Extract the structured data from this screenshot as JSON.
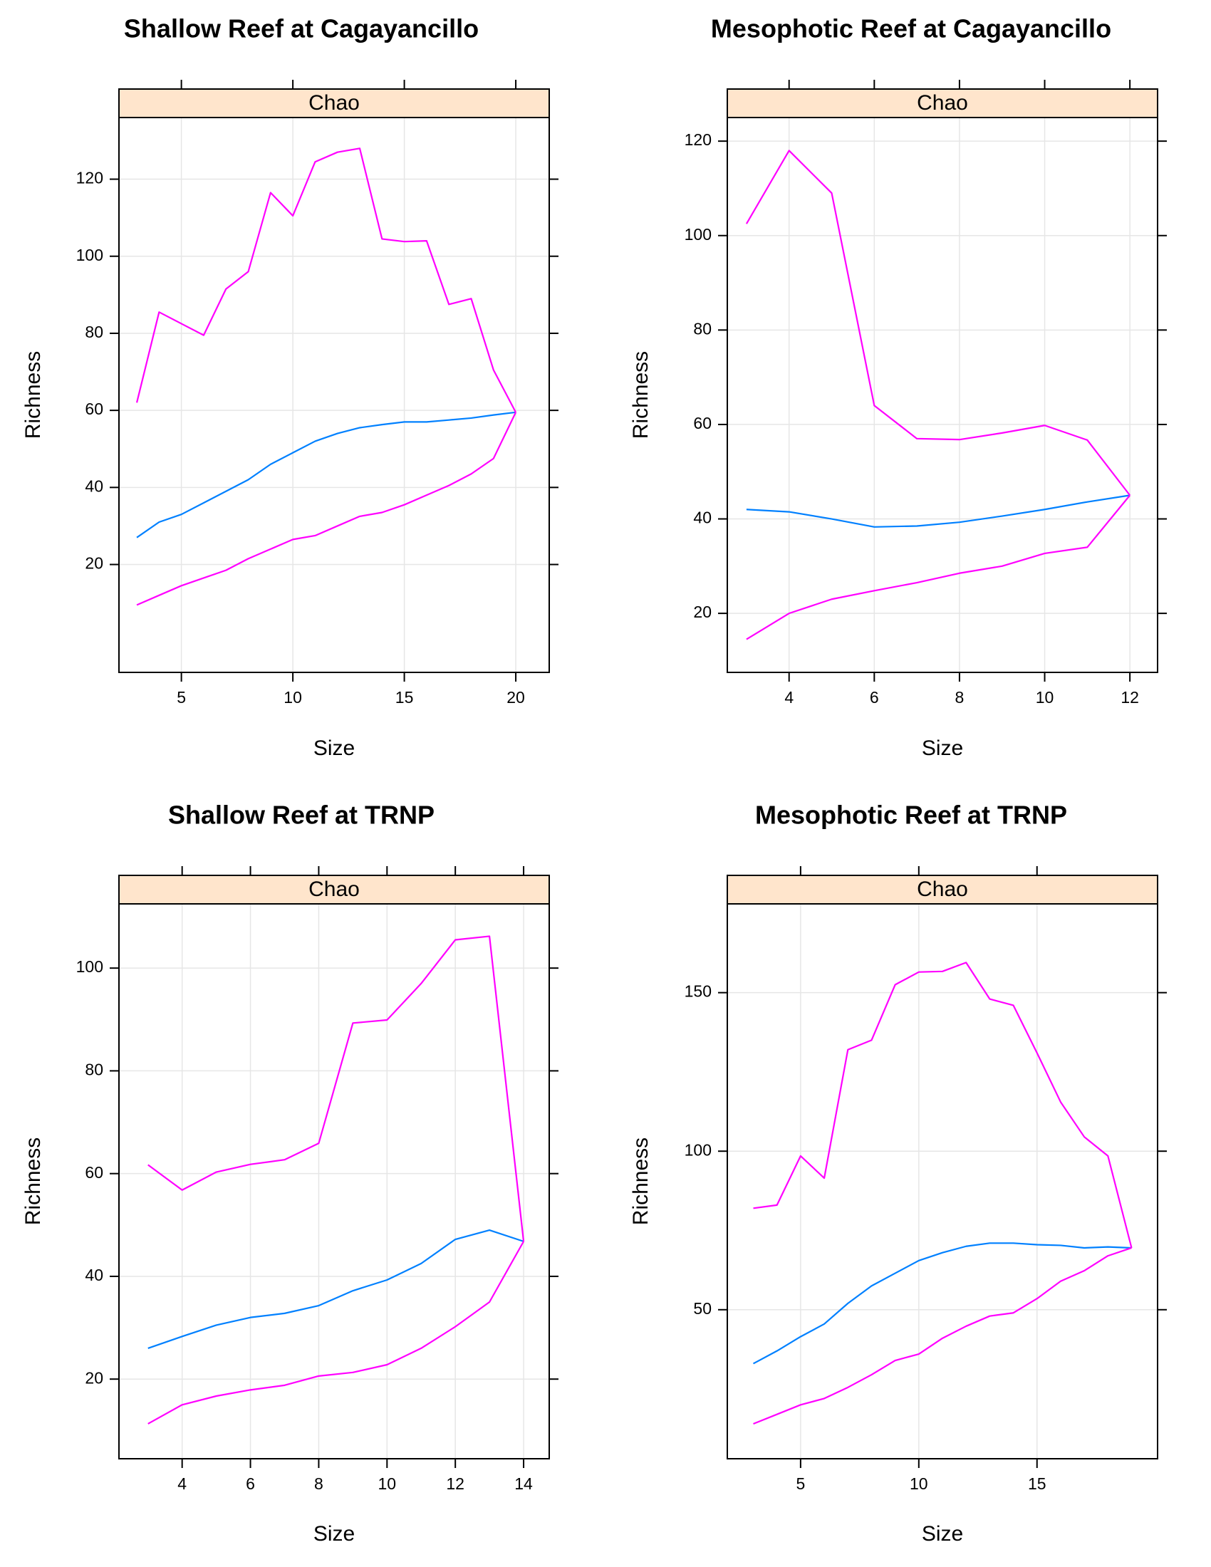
{
  "chart_data": [
    {
      "type": "line",
      "title": "Shallow Reef at Cagayancillo",
      "strip": "Chao",
      "xlabel": "Size",
      "ylabel": "Richness",
      "xlim": [
        2.2,
        21.5
      ],
      "ylim": [
        -8,
        136
      ],
      "xticks": [
        5,
        10,
        15,
        20
      ],
      "yticks": [
        20,
        40,
        60,
        80,
        100,
        120
      ],
      "grid": true,
      "colors": {
        "estimate": "#0080ff",
        "bounds": "#ff00ff",
        "strip": "#ffe5cc"
      },
      "x": [
        3,
        4,
        5,
        6,
        7,
        8,
        9,
        10,
        11,
        12,
        13,
        14,
        15,
        16,
        17,
        18,
        19,
        20
      ],
      "series": [
        {
          "values": [
            27,
            31,
            33,
            36,
            39,
            42,
            46,
            49,
            52,
            54,
            55.5,
            56.3,
            57,
            57,
            57.5,
            58,
            58.8,
            59.5
          ]
        },
        {
          "values": [
            62,
            85.5,
            82.5,
            79.5,
            91.5,
            96,
            116.5,
            110.5,
            124.5,
            127,
            128,
            104.5,
            103.8,
            104,
            87.5,
            89,
            70.5,
            59.5
          ]
        },
        {
          "values": [
            9.5,
            12,
            14.5,
            16.5,
            18.5,
            21.5,
            24,
            26.5,
            27.5,
            30,
            32.5,
            33.5,
            35.5,
            38,
            40.5,
            43.5,
            47.5,
            59.5
          ]
        }
      ]
    },
    {
      "type": "line",
      "title": "Mesophotic Reef at Cagayancillo",
      "strip": "Chao",
      "xlabel": "Size",
      "ylabel": "Richness",
      "xlim": [
        2.55,
        12.65
      ],
      "ylim": [
        7.5,
        125
      ],
      "xticks": [
        4,
        6,
        8,
        10,
        12
      ],
      "yticks": [
        20,
        40,
        60,
        80,
        100,
        120
      ],
      "grid": true,
      "colors": {
        "estimate": "#0080ff",
        "bounds": "#ff00ff",
        "strip": "#ffe5cc"
      },
      "x": [
        3,
        4,
        5,
        6,
        7,
        8,
        9,
        10,
        11,
        12
      ],
      "series": [
        {
          "values": [
            42,
            41.5,
            40,
            38.3,
            38.5,
            39.3,
            40.6,
            42,
            43.6,
            45
          ]
        },
        {
          "values": [
            102.5,
            118,
            109,
            64,
            57,
            56.8,
            58.2,
            59.8,
            56.7,
            45
          ]
        },
        {
          "values": [
            14.5,
            20,
            23,
            24.8,
            26.5,
            28.5,
            30,
            32.7,
            34,
            45
          ]
        }
      ]
    },
    {
      "type": "line",
      "title": "Shallow Reef at TRNP",
      "strip": "Chao",
      "xlabel": "Size",
      "ylabel": "Richness",
      "xlim": [
        2.15,
        14.75
      ],
      "ylim": [
        4.5,
        112.5
      ],
      "xticks": [
        4,
        6,
        8,
        10,
        12,
        14
      ],
      "yticks": [
        20,
        40,
        60,
        80,
        100
      ],
      "grid": true,
      "colors": {
        "estimate": "#0080ff",
        "bounds": "#ff00ff",
        "strip": "#ffe5cc"
      },
      "x": [
        3,
        4,
        5,
        6,
        7,
        8,
        9,
        10,
        11,
        12,
        13,
        14
      ],
      "series": [
        {
          "values": [
            26,
            28.3,
            30.5,
            32,
            32.8,
            34.3,
            37.2,
            39.3,
            42.5,
            47.2,
            49,
            46.8
          ]
        },
        {
          "values": [
            61.7,
            56.8,
            60.3,
            61.8,
            62.7,
            65.9,
            89.3,
            89.9,
            97,
            105.5,
            106.2,
            46.8
          ]
        },
        {
          "values": [
            11.3,
            15,
            16.7,
            17.9,
            18.8,
            20.6,
            21.3,
            22.8,
            26,
            30.2,
            35,
            46.8
          ]
        }
      ]
    },
    {
      "type": "line",
      "title": "Mesophotic Reef at TRNP",
      "strip": "Chao",
      "xlabel": "Size",
      "ylabel": "Richness",
      "xlim": [
        1.9,
        20.1
      ],
      "ylim": [
        3,
        178
      ],
      "xticks": [
        5,
        10,
        15
      ],
      "yticks": [
        50,
        100,
        150
      ],
      "grid": true,
      "colors": {
        "estimate": "#0080ff",
        "bounds": "#ff00ff",
        "strip": "#ffe5cc"
      },
      "x": [
        3,
        4,
        5,
        6,
        7,
        8,
        9,
        10,
        11,
        12,
        13,
        14,
        15,
        16,
        17,
        18,
        19
      ],
      "series": [
        {
          "values": [
            33,
            37,
            41.5,
            45.5,
            52,
            57.5,
            61.5,
            65.5,
            68,
            70,
            71,
            71,
            70.5,
            70.3,
            69.5,
            69.8,
            69.5
          ]
        },
        {
          "values": [
            82,
            83,
            98.5,
            91.5,
            132,
            135,
            152.5,
            156.5,
            156.7,
            159.5,
            148,
            146,
            131,
            115.5,
            104.5,
            98.5,
            69.5
          ]
        },
        {
          "values": [
            14,
            17,
            20,
            22,
            25.5,
            29.5,
            34,
            36,
            41,
            44.8,
            48,
            49,
            53.5,
            59,
            62.3,
            67,
            69.5
          ]
        }
      ]
    }
  ]
}
